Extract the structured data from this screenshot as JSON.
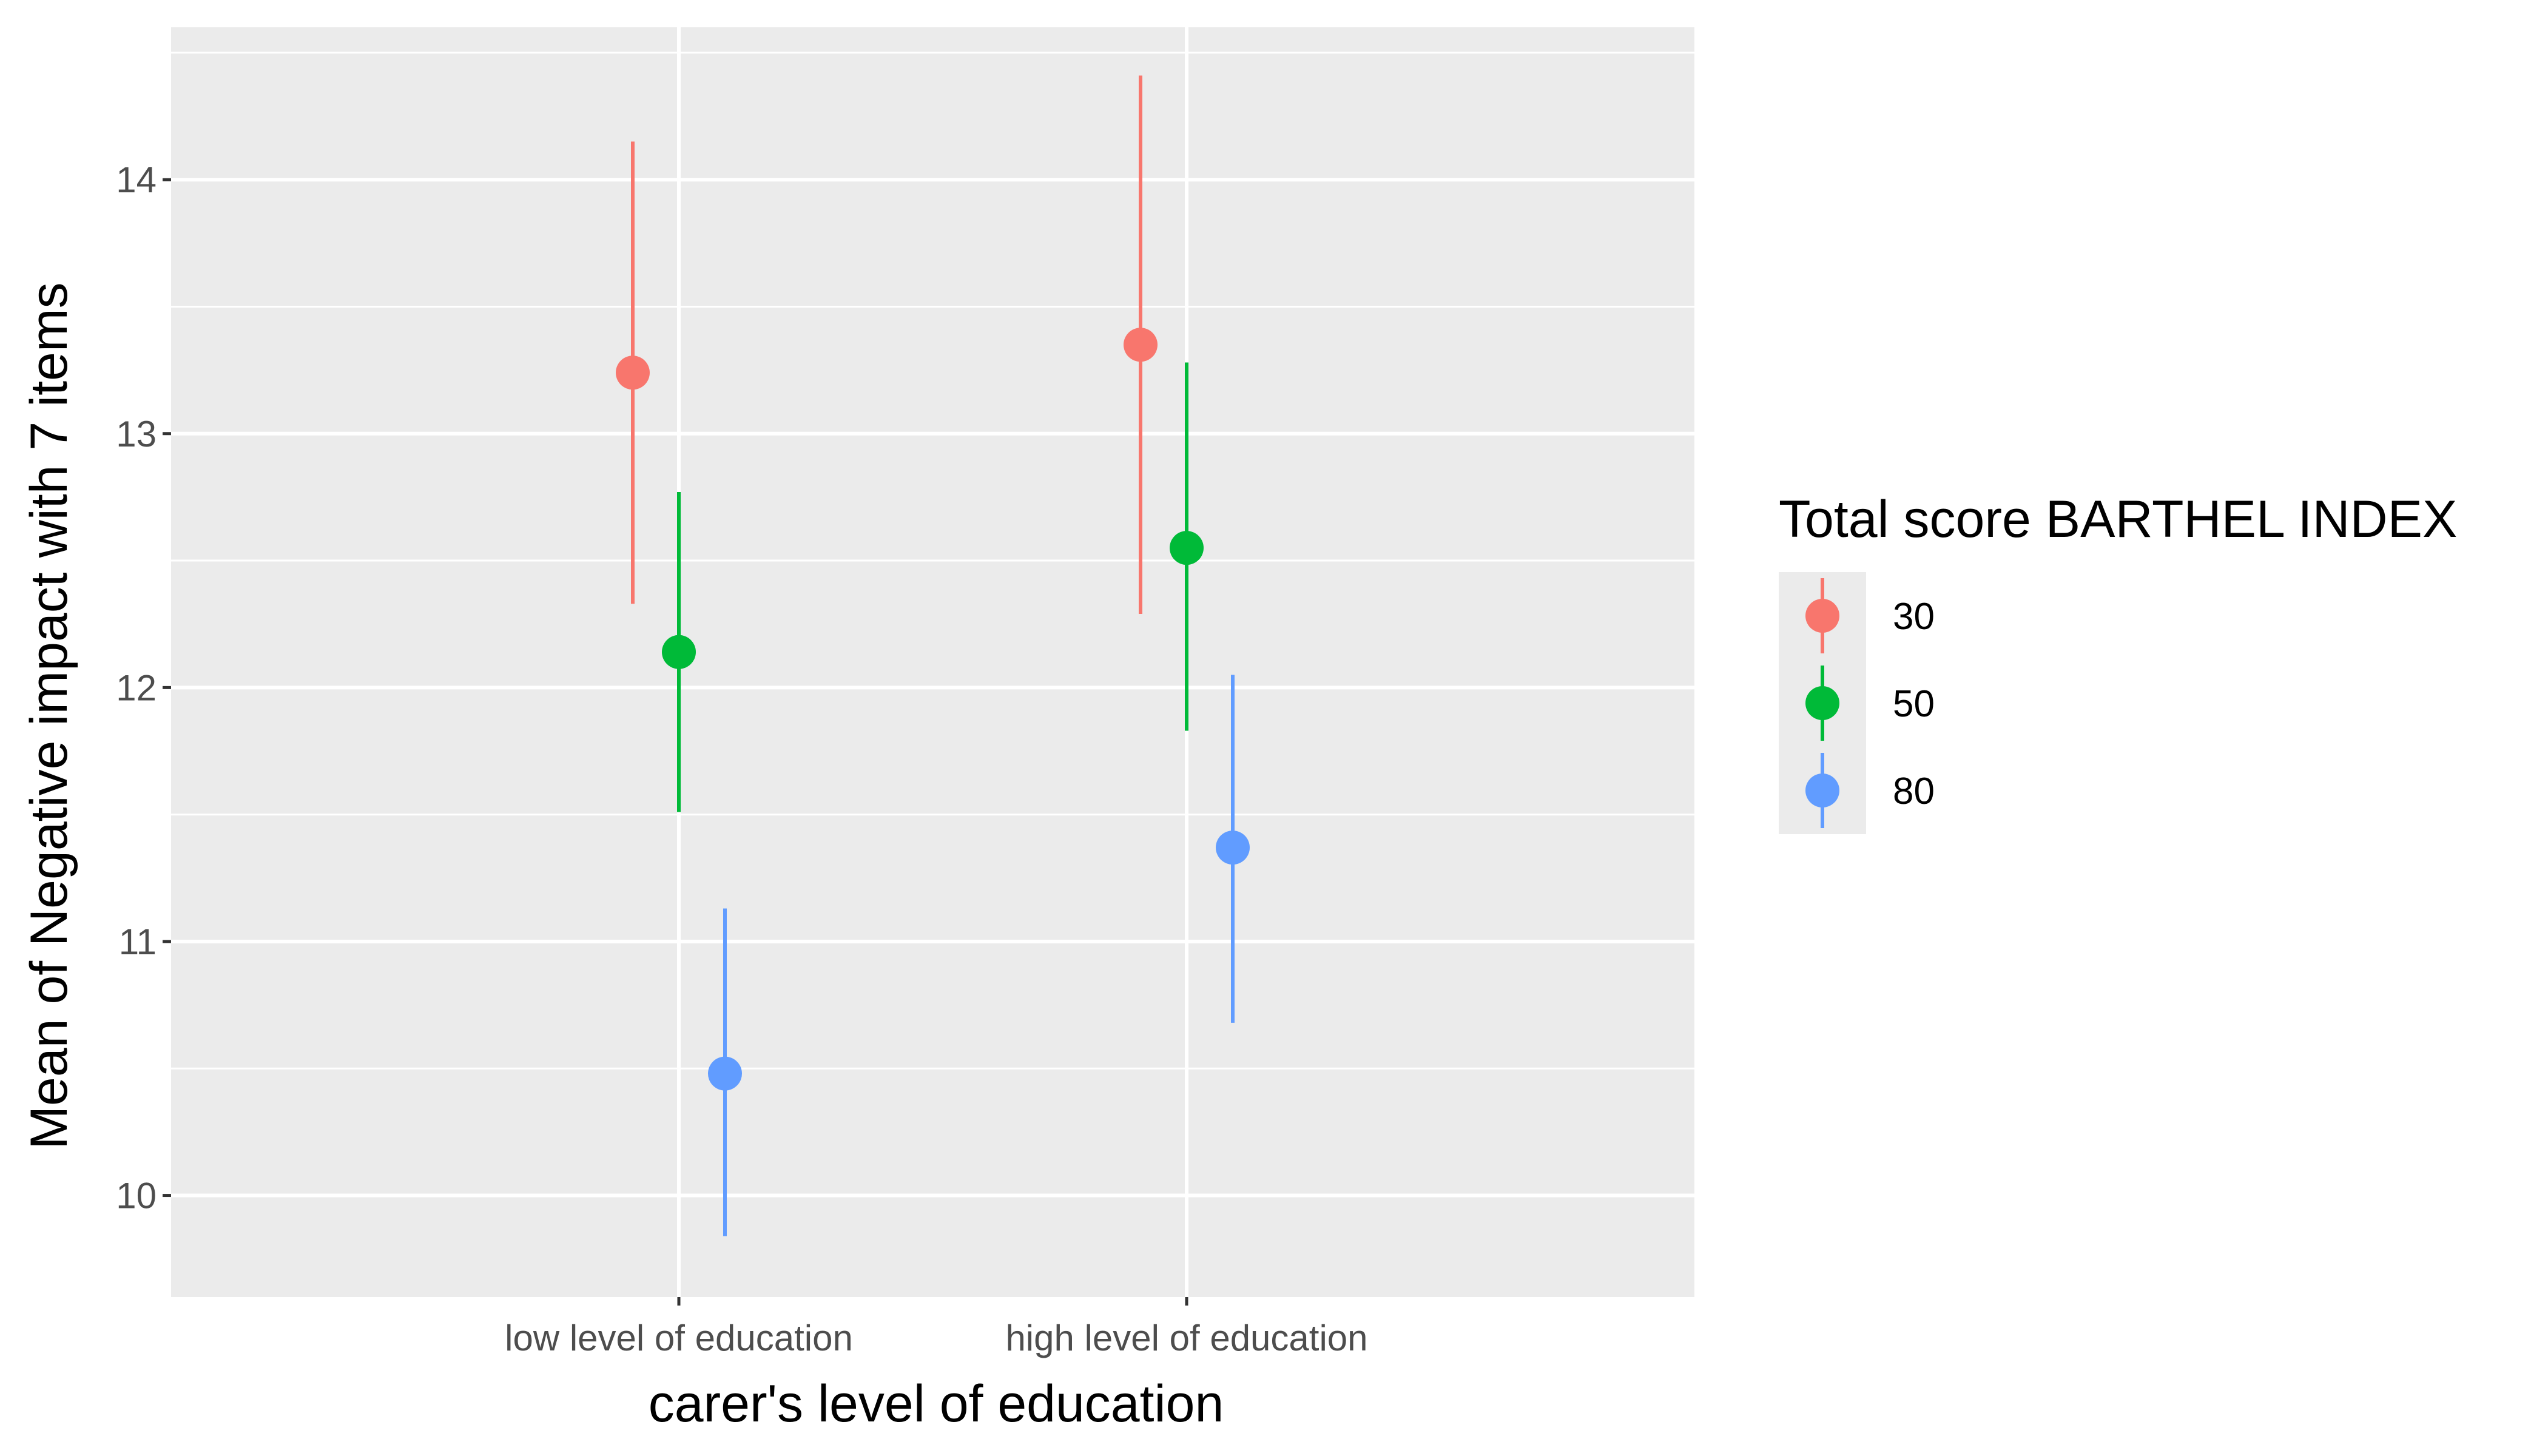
{
  "chart_data": {
    "type": "scatter",
    "subtype": "point-range (dodged)",
    "xlabel": "carer's level of education",
    "ylabel": "Mean of Negative impact with 7 items",
    "categories": [
      "low level of education",
      "high level of education"
    ],
    "yticks": [
      10,
      11,
      12,
      13,
      14
    ],
    "ylim": [
      9.6,
      14.6
    ],
    "grid": true,
    "legend": {
      "title": "Total score BARTHEL INDEX",
      "position": "right"
    },
    "series": [
      {
        "name": "30",
        "color": "#F8766D",
        "points": [
          {
            "category": "low level of education",
            "mean": 13.24,
            "lower": 12.33,
            "upper": 14.15
          },
          {
            "category": "high level of education",
            "mean": 13.35,
            "lower": 12.29,
            "upper": 14.41
          }
        ]
      },
      {
        "name": "50",
        "color": "#00BA38",
        "points": [
          {
            "category": "low level of education",
            "mean": 12.14,
            "lower": 11.51,
            "upper": 12.77
          },
          {
            "category": "high level of education",
            "mean": 12.55,
            "lower": 11.83,
            "upper": 13.28
          }
        ]
      },
      {
        "name": "80",
        "color": "#619CFF",
        "points": [
          {
            "category": "low level of education",
            "mean": 10.48,
            "lower": 9.84,
            "upper": 11.13
          },
          {
            "category": "high level of education",
            "mean": 11.37,
            "lower": 10.68,
            "upper": 12.05
          }
        ]
      }
    ]
  }
}
